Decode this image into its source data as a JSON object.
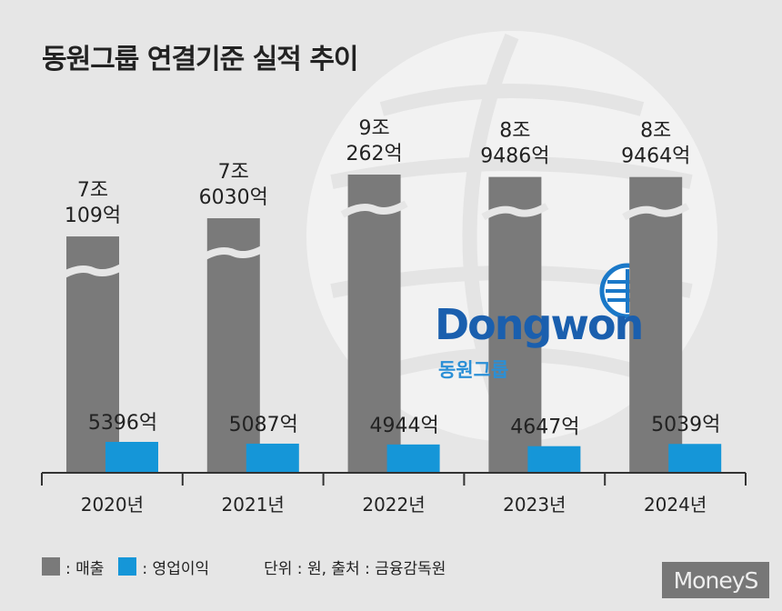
{
  "title": "동원그룹 연결기준 실적 추이",
  "colors": {
    "revenue": "#7a7a7a",
    "operating_profit": "#1596d8",
    "background": "#e6e6e6",
    "axis": "#333333",
    "text": "#222222"
  },
  "chart_data": {
    "type": "bar",
    "title": "동원그룹 연결기준 실적 추이",
    "xlabel": "",
    "ylabel": "",
    "axis_break": true,
    "grid": false,
    "legend_position": "bottom-left",
    "categories": [
      "2020년",
      "2021년",
      "2022년",
      "2023년",
      "2024년"
    ],
    "series": [
      {
        "name": "매출",
        "unit": "억원",
        "values": [
          70109,
          76030,
          90262,
          89486,
          89464
        ],
        "labels_line1": [
          "7조",
          "7조",
          "9조",
          "8조",
          "8조"
        ],
        "labels_line2": [
          "109억",
          "6030억",
          "262억",
          "9486억",
          "9464억"
        ]
      },
      {
        "name": "영업이익",
        "unit": "억원",
        "values": [
          5396,
          5087,
          4944,
          4647,
          5039
        ],
        "labels": [
          "5396억",
          "5087억",
          "4944억",
          "4647억",
          "5039억"
        ]
      }
    ]
  },
  "legend": {
    "revenue_label": ": 매출",
    "op_label": ": 영업이익",
    "note": "단위 : 원, 출처 : 금융감독원"
  },
  "logo": {
    "wordmark": "Dongwon",
    "sub": "동원그룹"
  },
  "credit": "MoneyS"
}
